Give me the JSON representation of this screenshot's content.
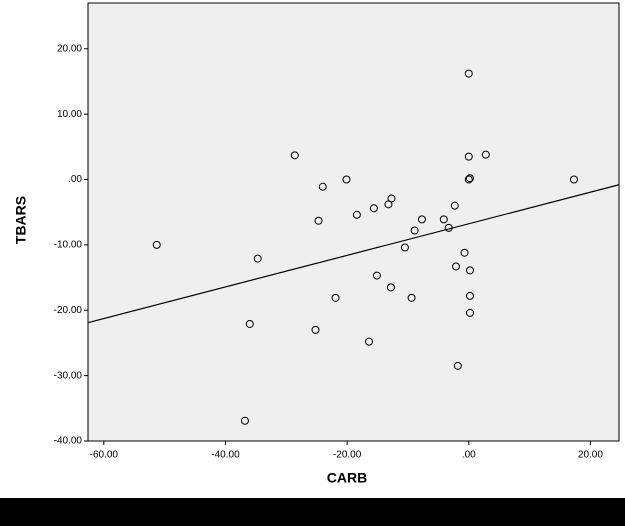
{
  "chart_data": {
    "type": "scatter",
    "xlabel": "CARB",
    "ylabel": "TBARS",
    "x": [
      -51.3,
      -34.7,
      -36.0,
      -36.8,
      -28.6,
      -24.0,
      -24.7,
      -21.9,
      -25.2,
      -20.1,
      -18.4,
      -15.6,
      -15.1,
      -16.4,
      -13.2,
      -12.7,
      -12.8,
      -10.5,
      -9.4,
      -8.9,
      -7.7,
      -4.1,
      -3.3,
      -2.3,
      -2.1,
      -1.8,
      -0.7,
      0,
      0,
      0.2,
      0,
      0.2,
      0.2,
      0.2,
      2.8,
      17.3
    ],
    "values": [
      -10.0,
      -12.1,
      -22.1,
      -36.9,
      3.7,
      -1.1,
      -6.3,
      -18.1,
      -23.0,
      0,
      -5.4,
      -4.4,
      -14.7,
      -24.8,
      -3.8,
      -2.9,
      -16.5,
      -10.4,
      -18.1,
      -7.8,
      -6.1,
      -6.1,
      -7.4,
      -4.0,
      -13.3,
      -28.5,
      -11.2,
      16.2,
      3.5,
      0.2,
      0,
      -13.9,
      -17.8,
      -20.4,
      3.8,
      0
    ],
    "color": "#000000",
    "fit_line": {
      "x": [
        -62.6,
        24.7
      ],
      "y": [
        -21.9,
        -0.8
      ]
    },
    "xlim": [
      -62.6,
      24.7
    ],
    "ylim": [
      -40,
      27
    ],
    "xticks": [
      {
        "value": -60,
        "label": "-60.00"
      },
      {
        "value": -40,
        "label": "-40.00"
      },
      {
        "value": -20,
        "label": "-20.00"
      },
      {
        "value": 0,
        "label": ".00"
      },
      {
        "value": 20,
        "label": "20.00"
      }
    ],
    "yticks": [
      {
        "value": -40,
        "label": "-40.00"
      },
      {
        "value": -30,
        "label": "-30.00"
      },
      {
        "value": -20,
        "label": "-20.00"
      },
      {
        "value": -10,
        "label": "-10.00"
      },
      {
        "value": 0,
        "label": ".00"
      },
      {
        "value": 10,
        "label": "10.00"
      },
      {
        "value": 20,
        "label": "20.00"
      }
    ]
  }
}
